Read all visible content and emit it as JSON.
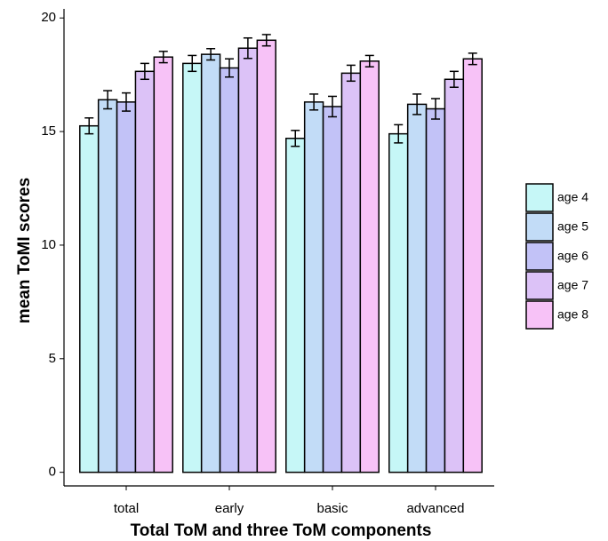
{
  "chart_data": {
    "type": "bar",
    "x_label": "Total ToM and three ToM components",
    "y_label": "mean ToMI scores",
    "categories": [
      "total",
      "early",
      "basic",
      "advanced"
    ],
    "series": [
      {
        "name": "age 4",
        "color": "#c6f7f7",
        "values": [
          15.25,
          18.0,
          14.7,
          14.9
        ],
        "errors": [
          0.35,
          0.35,
          0.35,
          0.4
        ]
      },
      {
        "name": "age 5",
        "color": "#c2dcf7",
        "values": [
          16.4,
          18.4,
          16.3,
          16.2
        ],
        "errors": [
          0.4,
          0.25,
          0.35,
          0.45
        ]
      },
      {
        "name": "age 6",
        "color": "#c2c2f7",
        "values": [
          16.3,
          17.8,
          16.1,
          16.0
        ],
        "errors": [
          0.4,
          0.4,
          0.45,
          0.45
        ]
      },
      {
        "name": "age 7",
        "color": "#dcc2f7",
        "values": [
          17.65,
          18.67,
          17.57,
          17.3
        ],
        "errors": [
          0.35,
          0.45,
          0.35,
          0.35
        ]
      },
      {
        "name": "age 8",
        "color": "#f7c2f7",
        "values": [
          18.28,
          19.02,
          18.1,
          18.2
        ],
        "errors": [
          0.25,
          0.25,
          0.25,
          0.25
        ]
      }
    ],
    "ylim": [
      -0.6,
      20.4
    ],
    "yticks": [
      0,
      5,
      10,
      15,
      20
    ]
  }
}
